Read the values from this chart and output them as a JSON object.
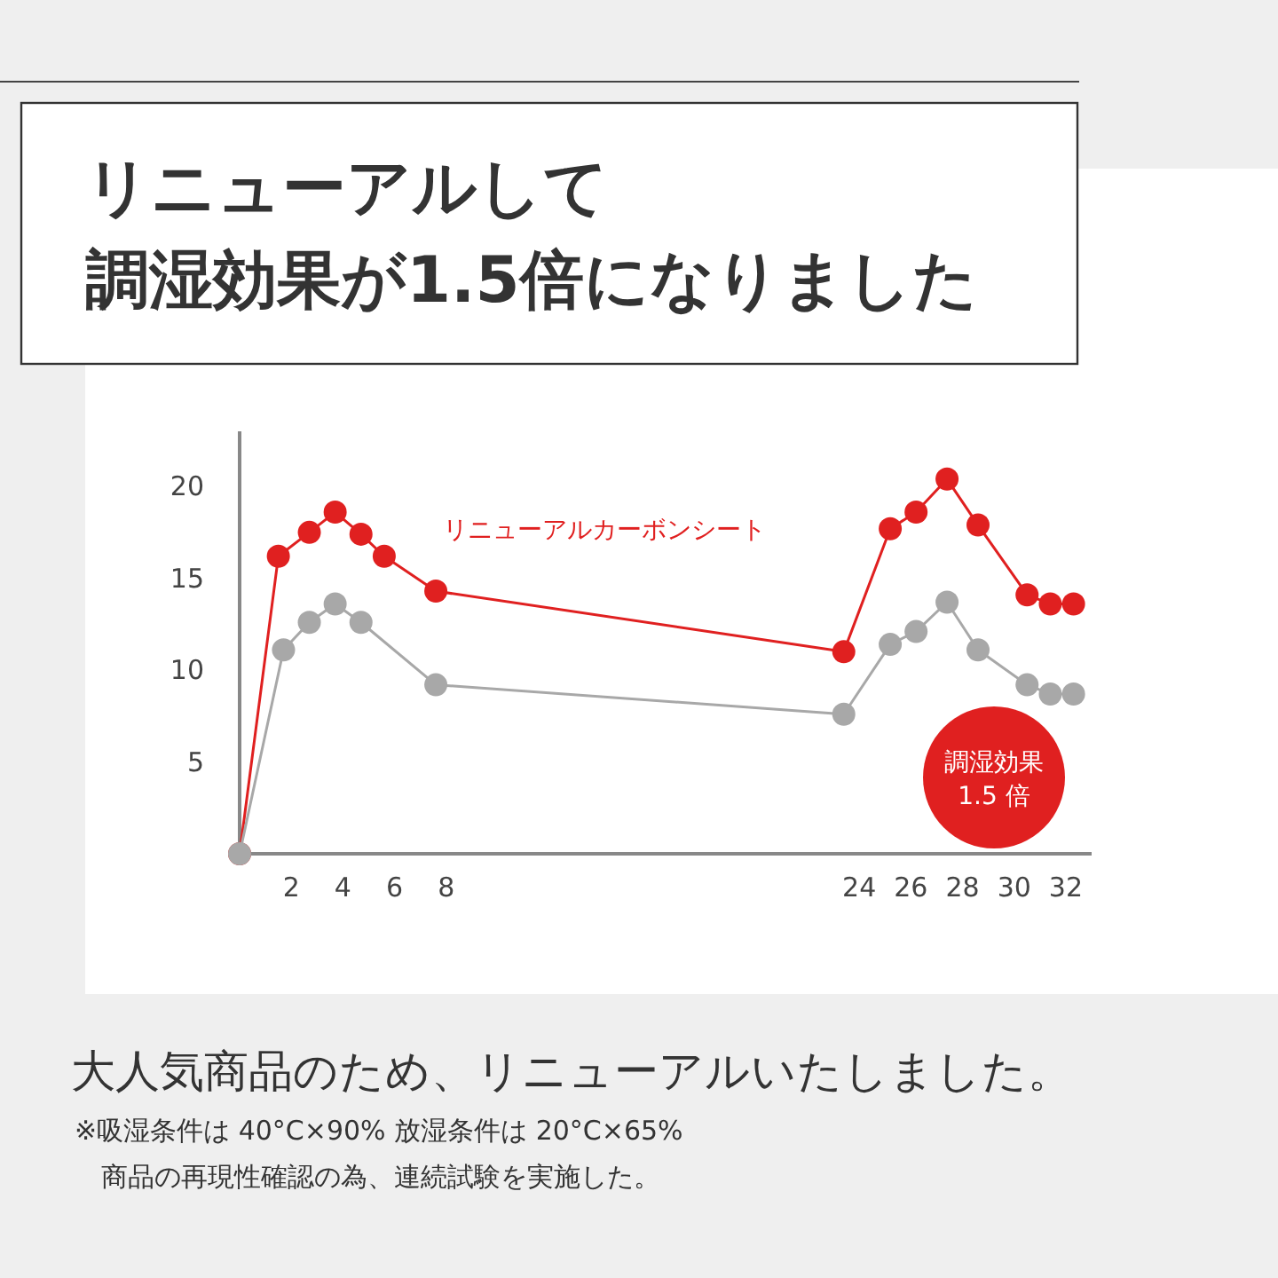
{
  "chart_data": {
    "type": "line",
    "title": "リニューアルして",
    "subtitle": "調湿効果が1.5倍になりました",
    "xlim": [
      0,
      33
    ],
    "xticks": [
      2,
      4,
      6,
      8,
      24,
      26,
      28,
      30,
      32
    ],
    "ylim": [
      0,
      23
    ],
    "yticks": [
      5,
      10,
      15,
      20
    ],
    "marker": "circle",
    "grid": false,
    "series": [
      {
        "name": "リニューアルカーボンシート",
        "color": "#e02020",
        "x": [
          0,
          1.5,
          2.7,
          3.7,
          4.7,
          5.6,
          7.6,
          23.4,
          25.2,
          26.2,
          27.4,
          28.6,
          30.5,
          31.4,
          32.3
        ],
        "values": [
          0,
          16.2,
          17.5,
          18.6,
          17.4,
          16.2,
          14.3,
          11.0,
          17.7,
          18.6,
          20.4,
          17.9,
          14.1,
          13.6,
          13.6
        ]
      },
      {
        "color": "#a8a8a8",
        "x": [
          0,
          1.7,
          2.7,
          3.7,
          4.7,
          7.6,
          23.4,
          25.2,
          26.2,
          27.4,
          28.6,
          30.5,
          31.4,
          32.3
        ],
        "values": [
          0,
          11.1,
          12.6,
          13.6,
          12.6,
          9.2,
          7.6,
          11.4,
          12.1,
          13.7,
          11.1,
          9.2,
          8.7,
          8.7
        ]
      }
    ],
    "annotations": [
      "調湿効果\n1.5 倍",
      "大人気商品のため、リニューアルいたしました。",
      "※吸湿条件は 40°C×90% 放湿条件は 20°C×65%\n　商品の再現性確認の為、連続試験を実施した。"
    ]
  }
}
